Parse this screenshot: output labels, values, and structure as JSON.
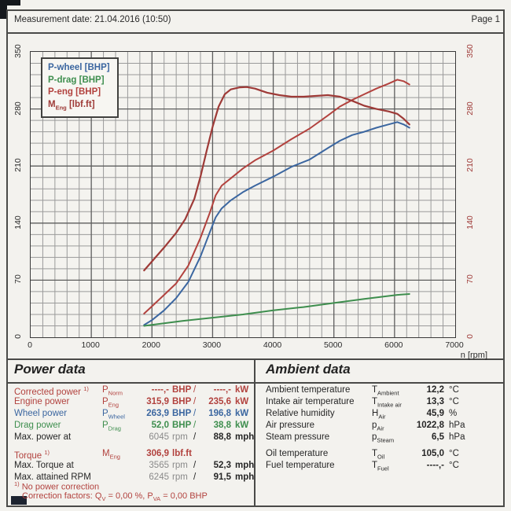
{
  "header": {
    "measurement": "Measurement date: 21.04.2016 (10:50)",
    "page": "Page 1"
  },
  "chart": {
    "x_title": "n [rpm]",
    "x_ticks": [
      0,
      1000,
      2000,
      3000,
      4000,
      5000,
      6000,
      7000
    ],
    "y_ticks": [
      0,
      70,
      140,
      210,
      280,
      350
    ],
    "legend": [
      {
        "color": "#3b66a0",
        "parts": [
          {
            "t": "P-wheel [BHP]"
          }
        ]
      },
      {
        "color": "#3e8e4e",
        "parts": [
          {
            "t": "P-drag [BHP]"
          }
        ]
      },
      {
        "color": "#b2423e",
        "parts": [
          {
            "t": "P-eng [BHP]"
          }
        ]
      },
      {
        "color": "#9e3a37",
        "parts": [
          {
            "t": "M"
          },
          {
            "sub": "Eng"
          },
          {
            "t": " [lbf.ft]"
          }
        ]
      }
    ]
  },
  "chart_data": {
    "type": "line",
    "xlabel": "n [rpm]",
    "ylabel": "",
    "xlim": [
      0,
      7000
    ],
    "ylim": [
      0,
      350
    ],
    "grid": true,
    "grid_minor_x_step": 200,
    "grid_minor_y_step": 14,
    "legend_position": "top-left",
    "series": [
      {
        "id": "p-wheel",
        "name": "P-wheel [BHP]",
        "color": "#3b66a0",
        "width": 2,
        "points": [
          [
            1870,
            15
          ],
          [
            2000,
            21
          ],
          [
            2200,
            33
          ],
          [
            2400,
            48
          ],
          [
            2600,
            68
          ],
          [
            2800,
            99
          ],
          [
            2950,
            128
          ],
          [
            3050,
            147
          ],
          [
            3150,
            158
          ],
          [
            3300,
            168
          ],
          [
            3500,
            178
          ],
          [
            3700,
            186
          ],
          [
            4000,
            197
          ],
          [
            4300,
            209
          ],
          [
            4600,
            218
          ],
          [
            4900,
            232
          ],
          [
            5100,
            241
          ],
          [
            5300,
            248
          ],
          [
            5500,
            252
          ],
          [
            5700,
            257
          ],
          [
            5900,
            261
          ],
          [
            6045,
            263.9
          ],
          [
            6150,
            261
          ],
          [
            6245,
            257
          ]
        ]
      },
      {
        "id": "p-drag",
        "name": "P-drag [BHP]",
        "color": "#3e8e4e",
        "width": 2,
        "points": [
          [
            1870,
            14
          ],
          [
            2500,
            20
          ],
          [
            3000,
            24
          ],
          [
            3500,
            28
          ],
          [
            4000,
            33
          ],
          [
            4500,
            37
          ],
          [
            5000,
            42
          ],
          [
            5500,
            47
          ],
          [
            6045,
            52
          ],
          [
            6245,
            53
          ]
        ]
      },
      {
        "id": "p-eng",
        "name": "P-eng [BHP]",
        "color": "#b2423e",
        "width": 2,
        "points": [
          [
            1870,
            29
          ],
          [
            2000,
            38
          ],
          [
            2200,
            52
          ],
          [
            2400,
            66
          ],
          [
            2600,
            88
          ],
          [
            2800,
            122
          ],
          [
            2950,
            152
          ],
          [
            3050,
            174
          ],
          [
            3150,
            186
          ],
          [
            3300,
            195
          ],
          [
            3500,
            207
          ],
          [
            3700,
            217
          ],
          [
            4000,
            229
          ],
          [
            4300,
            243
          ],
          [
            4600,
            256
          ],
          [
            4900,
            272
          ],
          [
            5100,
            283
          ],
          [
            5300,
            291
          ],
          [
            5500,
            298
          ],
          [
            5700,
            305
          ],
          [
            5900,
            311
          ],
          [
            6045,
            315.9
          ],
          [
            6150,
            314
          ],
          [
            6245,
            310
          ]
        ]
      },
      {
        "id": "m-eng",
        "name": "M_Eng [lbf.ft]",
        "color": "#9e3a37",
        "width": 2.2,
        "points": [
          [
            1870,
            82
          ],
          [
            2000,
            93
          ],
          [
            2200,
            110
          ],
          [
            2400,
            128
          ],
          [
            2550,
            145
          ],
          [
            2700,
            170
          ],
          [
            2800,
            197
          ],
          [
            2900,
            228
          ],
          [
            3000,
            258
          ],
          [
            3100,
            283
          ],
          [
            3200,
            298
          ],
          [
            3300,
            304
          ],
          [
            3450,
            306.5
          ],
          [
            3565,
            306.9
          ],
          [
            3700,
            305
          ],
          [
            3900,
            300
          ],
          [
            4100,
            297
          ],
          [
            4300,
            295
          ],
          [
            4500,
            295
          ],
          [
            4700,
            296
          ],
          [
            4900,
            297
          ],
          [
            5100,
            295
          ],
          [
            5300,
            290
          ],
          [
            5500,
            284
          ],
          [
            5700,
            280
          ],
          [
            5900,
            277
          ],
          [
            6045,
            274
          ],
          [
            6150,
            268
          ],
          [
            6245,
            261
          ]
        ]
      }
    ]
  },
  "power": {
    "title": "Power data",
    "rows": [
      {
        "color": "red",
        "label": [
          {
            "t": "Corrected power "
          },
          {
            "sup": "1)"
          }
        ],
        "sym": [
          {
            "t": "P"
          },
          {
            "sub": "Norm"
          }
        ],
        "v1": "----,-",
        "u1": "BHP",
        "sl": "/",
        "v2": "----,-",
        "u2": "kW"
      },
      {
        "color": "red",
        "label": [
          {
            "t": "Engine power"
          }
        ],
        "sym": [
          {
            "t": "P"
          },
          {
            "sub": "Eng"
          }
        ],
        "v1": "315,9",
        "u1": "BHP",
        "sl": "/",
        "v2": "235,6",
        "u2": "kW"
      },
      {
        "color": "blue",
        "label": [
          {
            "t": "Wheel power"
          }
        ],
        "sym": [
          {
            "t": "P"
          },
          {
            "sub": "Wheel"
          }
        ],
        "v1": "263,9",
        "u1": "BHP",
        "sl": "/",
        "v2": "196,8",
        "u2": "kW"
      },
      {
        "color": "green",
        "label": [
          {
            "t": "Drag power"
          }
        ],
        "sym": [
          {
            "t": "P"
          },
          {
            "sub": "Drag"
          }
        ],
        "v1": "52,0",
        "u1": "BHP",
        "sl": "/",
        "v2": "38,8",
        "u2": "kW"
      },
      {
        "color": "plain",
        "label": [
          {
            "t": "Max. power at"
          }
        ],
        "sym": [],
        "v1": "6045",
        "u1": "rpm",
        "sl": "/",
        "v2": "88,8",
        "u2": "mph"
      },
      {
        "color": "red",
        "label": [
          {
            "t": "Torque "
          },
          {
            "sup": "1)"
          }
        ],
        "sym": [
          {
            "t": "M"
          },
          {
            "sub": "Eng"
          }
        ],
        "v1": "306,9",
        "u1": "lbf.ft",
        "sl": "",
        "v2": "",
        "u2": ""
      },
      {
        "color": "plain",
        "label": [
          {
            "t": "Max. Torque at"
          }
        ],
        "sym": [],
        "v1": "3565",
        "u1": "rpm",
        "sl": "/",
        "v2": "52,3",
        "u2": "mph"
      },
      {
        "color": "plain",
        "label": [
          {
            "t": "Max. attained RPM"
          }
        ],
        "sym": [],
        "v1": "6245",
        "u1": "rpm",
        "sl": "/",
        "v2": "91,5",
        "u2": "mph"
      }
    ],
    "footnote1": [
      {
        "sup": "1)"
      },
      {
        "t": " No power correction"
      }
    ],
    "footnote2": [
      {
        "t": "Correction factors: Q"
      },
      {
        "sub": "V"
      },
      {
        "t": " =  0,00 %, P"
      },
      {
        "sub": "VA"
      },
      {
        "t": " =  0,00 BHP"
      }
    ]
  },
  "ambient": {
    "title": "Ambient data",
    "rows": [
      {
        "label": "Ambient temperature",
        "sym": [
          {
            "t": "T"
          },
          {
            "sub": "Ambient"
          }
        ],
        "v": "12,2",
        "u": "°C"
      },
      {
        "label": "Intake air temperature",
        "sym": [
          {
            "t": "T"
          },
          {
            "sub": "Intake air"
          }
        ],
        "v": "13,3",
        "u": "°C"
      },
      {
        "label": "Relative humidity",
        "sym": [
          {
            "t": "H"
          },
          {
            "sub": "Air"
          }
        ],
        "v": "45,9",
        "u": "%"
      },
      {
        "label": "Air pressure",
        "sym": [
          {
            "t": "p"
          },
          {
            "sub": "Air"
          }
        ],
        "v": "1022,8",
        "u": "hPa"
      },
      {
        "label": "Steam pressure",
        "sym": [
          {
            "t": "p"
          },
          {
            "sub": "Steam"
          }
        ],
        "v": "6,5",
        "u": "hPa"
      },
      {
        "label": "Oil temperature",
        "sym": [
          {
            "t": "T"
          },
          {
            "sub": "Oil"
          }
        ],
        "v": "105,0",
        "u": "°C"
      },
      {
        "label": "Fuel temperature",
        "sym": [
          {
            "t": "T"
          },
          {
            "sub": "Fuel"
          }
        ],
        "v": "----,-",
        "u": "°C"
      }
    ]
  },
  "colors": {
    "red": "#b2423e",
    "blue": "#3b66a0",
    "green": "#3e8e4e",
    "torque": "#9e3a37",
    "muted": "#8a8a8a",
    "text": "#262626",
    "grid_major": "#5d5d5d",
    "grid_minor": "#9a9a9a",
    "paper": "#f3f2ee"
  }
}
